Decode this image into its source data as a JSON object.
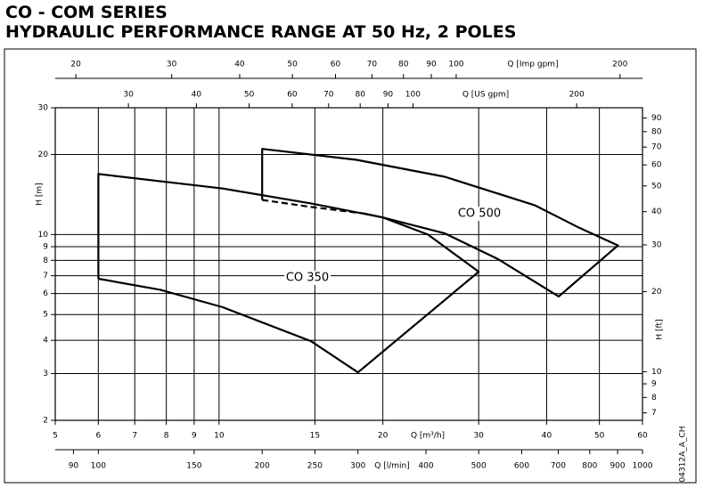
{
  "chart_data": {
    "type": "line",
    "title": "CO - COM SERIES",
    "subtitle": "HYDRAULIC PERFORMANCE RANGE AT 50 Hz, 2 POLES",
    "code": "04312A_A_CH",
    "log_scale": true,
    "grid": true,
    "x_axes": [
      {
        "label": "Q [m³/h]",
        "position": "bottom",
        "lim": [
          5,
          60
        ],
        "ticks": [
          5,
          6,
          7,
          8,
          9,
          10,
          15,
          20,
          30,
          40,
          50,
          60
        ]
      },
      {
        "label": "Q [l/min]",
        "position": "bottom2",
        "lim": [
          83.33,
          1000
        ],
        "ticks": [
          90,
          100,
          150,
          200,
          250,
          300,
          400,
          500,
          600,
          700,
          800,
          900,
          1000
        ]
      },
      {
        "label": "Q [US gpm]",
        "position": "top2",
        "lim": [
          22.01,
          264.2
        ],
        "ticks": [
          30,
          40,
          50,
          60,
          70,
          80,
          90,
          100,
          200
        ]
      },
      {
        "label": "Q [Imp gpm]",
        "position": "top",
        "lim": [
          18.33,
          219.97
        ],
        "ticks": [
          20,
          30,
          40,
          50,
          60,
          70,
          80,
          90,
          100,
          200
        ]
      }
    ],
    "y_axes": [
      {
        "label": "H [m]",
        "position": "left",
        "lim": [
          2,
          30
        ],
        "ticks": [
          2,
          3,
          4,
          5,
          6,
          7,
          8,
          9,
          10,
          20,
          30
        ]
      },
      {
        "label": "H [ft]",
        "position": "right",
        "lim": [
          6.5617,
          98.425
        ],
        "ticks": [
          7,
          8,
          9,
          10,
          20,
          30,
          40,
          50,
          60,
          70,
          80,
          90
        ]
      }
    ],
    "series": [
      {
        "name": "CO 350",
        "dashed": false,
        "x": [
          6,
          6,
          10.16,
          14.75,
          20,
          24.2,
          30,
          18,
          14.75,
          10.16,
          7.8,
          6
        ],
        "values": [
          6.82,
          16.9,
          14.9,
          13.1,
          11.6,
          10,
          7.25,
          3.03,
          3.97,
          5.33,
          6.2,
          6.82
        ]
      },
      {
        "name": "CO 500",
        "dashed": false,
        "x": [
          12,
          12,
          17.9,
          26,
          38,
          45.9,
          54.1,
          42.1,
          32.5,
          26,
          20,
          18.5
        ],
        "values": [
          13.5,
          21,
          19.1,
          16.5,
          12.9,
          10.6,
          9.1,
          5.85,
          8.1,
          10.1,
          11.6,
          12.0
        ]
      },
      {
        "dashed": true,
        "x": [
          12,
          14.75,
          18.5
        ],
        "values": [
          13.5,
          12.7,
          12.0
        ]
      }
    ]
  }
}
